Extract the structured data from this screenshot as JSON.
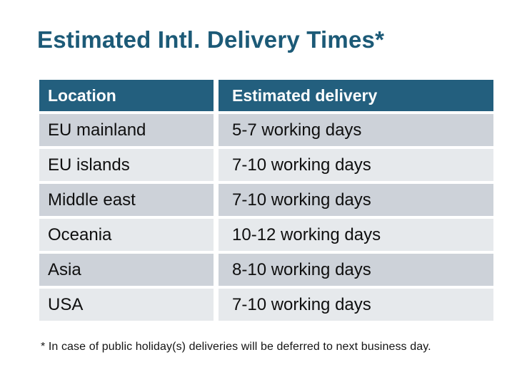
{
  "title": "Estimated Intl. Delivery Times*",
  "table": {
    "headers": {
      "location": "Location",
      "delivery": "Estimated delivery"
    },
    "rows": [
      {
        "location": "EU mainland",
        "delivery": "5-7 working days"
      },
      {
        "location": "EU islands",
        "delivery": "7-10 working days"
      },
      {
        "location": "Middle east",
        "delivery": "7-10 working days"
      },
      {
        "location": "Oceania",
        "delivery": "10-12 working days"
      },
      {
        "location": "Asia",
        "delivery": "8-10 working days"
      },
      {
        "location": "USA",
        "delivery": "7-10 working days"
      }
    ]
  },
  "footnote": "* In case of public holiday(s) deliveries will be deferred to next business day.",
  "colors": {
    "title_text": "#1C5A77",
    "header_bg": "#235F7E",
    "header_text": "#FFFFFF",
    "row_dark": "#CDD2D9",
    "row_light": "#E6E9EC",
    "body_text": "#0F0F0F",
    "background": "#FFFFFF"
  }
}
